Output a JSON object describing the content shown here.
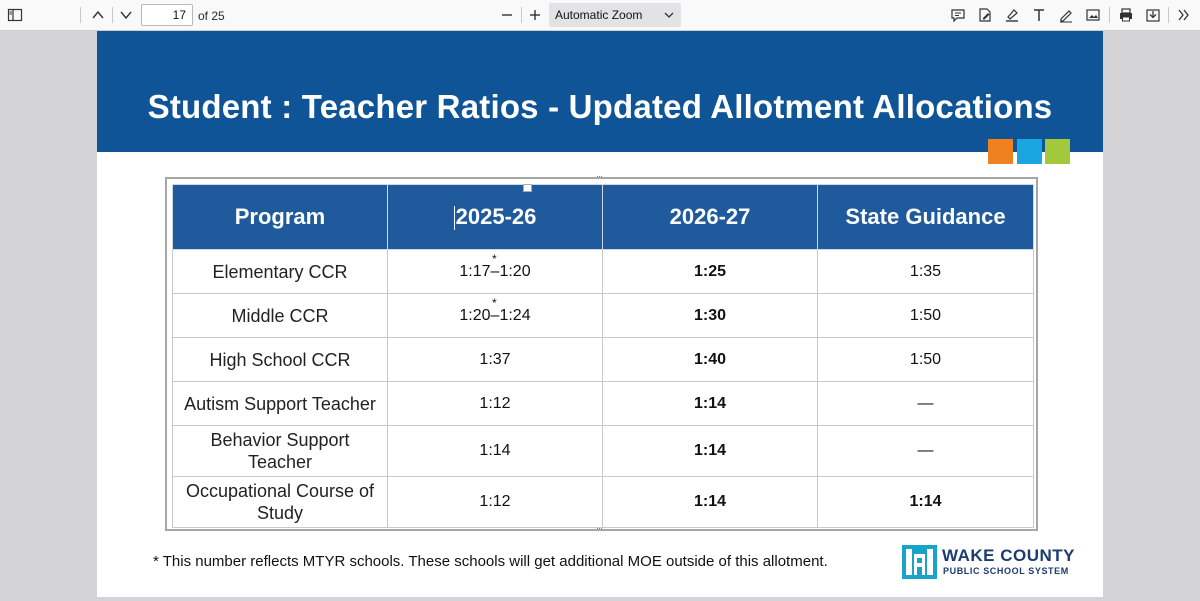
{
  "toolbar": {
    "page_current": "17",
    "page_of": "of 25",
    "zoom_value": "Automatic Zoom",
    "icons": [
      "sidebar-toggle-icon",
      "chevron-up-icon",
      "chevron-down-icon",
      "zoom-out-icon",
      "zoom-in-icon",
      "comment-icon",
      "signature-icon",
      "highlight-icon",
      "text-icon",
      "draw-icon",
      "image-icon",
      "print-icon",
      "download-icon",
      "more-tools-icon"
    ]
  },
  "slide": {
    "title": "Student : Teacher Ratios - Updated Allotment Allocations",
    "accent_colors": [
      "#f0811f",
      "#1aa6de",
      "#a2c83b"
    ],
    "header_color": "#0f5496",
    "table": {
      "headers": [
        "Program",
        "2025-26",
        "2026-27",
        "State Guidance"
      ],
      "rows": [
        {
          "program": "Elementary CCR",
          "y2025": "1:17–1:20",
          "y2025_mark": "*",
          "y2026": "1:25",
          "state": "1:35"
        },
        {
          "program": "Middle CCR",
          "y2025": "1:20–1:24",
          "y2025_mark": "*",
          "y2026": "1:30",
          "state": "1:50"
        },
        {
          "program": "High School CCR",
          "y2025": "1:37",
          "y2026": "1:40",
          "state": "1:50"
        },
        {
          "program": "Autism Support Teacher",
          "y2025": "1:12",
          "y2026": "1:14",
          "state": "—"
        },
        {
          "program": "Behavior Support Teacher",
          "y2025": "1:14",
          "y2026": "1:14",
          "state": "—"
        },
        {
          "program": "Occupational Course of Study",
          "y2025": "1:12",
          "y2026": "1:14",
          "state": "1:14"
        }
      ]
    },
    "footnote": "* This number reflects MTYR schools. These schools will get additional MOE outside of this allotment.",
    "logo": {
      "line1": "WAKE COUNTY",
      "line2": "PUBLIC SCHOOL SYSTEM"
    }
  }
}
